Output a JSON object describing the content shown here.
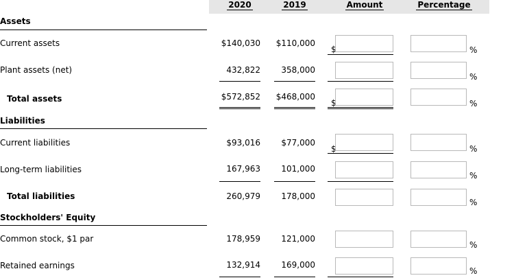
{
  "columns": {
    "y2020": "2020",
    "y2019": "2019",
    "amount": "Amount",
    "percentage": "Percentage"
  },
  "sections": {
    "assets": "Assets",
    "liabilities": "Liabilities",
    "equity": "Stockholders' Equity"
  },
  "rows": [
    {
      "label": "Current assets",
      "v2020": "$140,030",
      "v2019": "$110,000",
      "currency": "$",
      "pct": "%"
    },
    {
      "label": "Plant assets (net)",
      "v2020": "432,822",
      "v2019": "358,000",
      "currency": "",
      "pct": "%"
    },
    {
      "label": "Total assets",
      "v2020": "$572,852",
      "v2019": "$468,000",
      "currency": "$",
      "pct": "%"
    },
    {
      "label": "Current liabilities",
      "v2020": "$93,016",
      "v2019": "$77,000",
      "currency": "$",
      "pct": "%"
    },
    {
      "label": "Long-term liabilities",
      "v2020": "167,963",
      "v2019": "101,000",
      "currency": "",
      "pct": "%"
    },
    {
      "label": "Total liabilities",
      "v2020": "260,979",
      "v2019": "178,000",
      "currency": "",
      "pct": "%"
    },
    {
      "label": "Common stock, $1 par",
      "v2020": "178,959",
      "v2019": "121,000",
      "currency": "",
      "pct": "%"
    },
    {
      "label": "Retained earnings",
      "v2020": "132,914",
      "v2019": "169,000",
      "currency": "",
      "pct": "%"
    }
  ],
  "inputs": {
    "amount": [
      "",
      "",
      "",
      "",
      "",
      "",
      "",
      ""
    ],
    "percentage": [
      "",
      "",
      "",
      "",
      "",
      "",
      "",
      ""
    ]
  }
}
